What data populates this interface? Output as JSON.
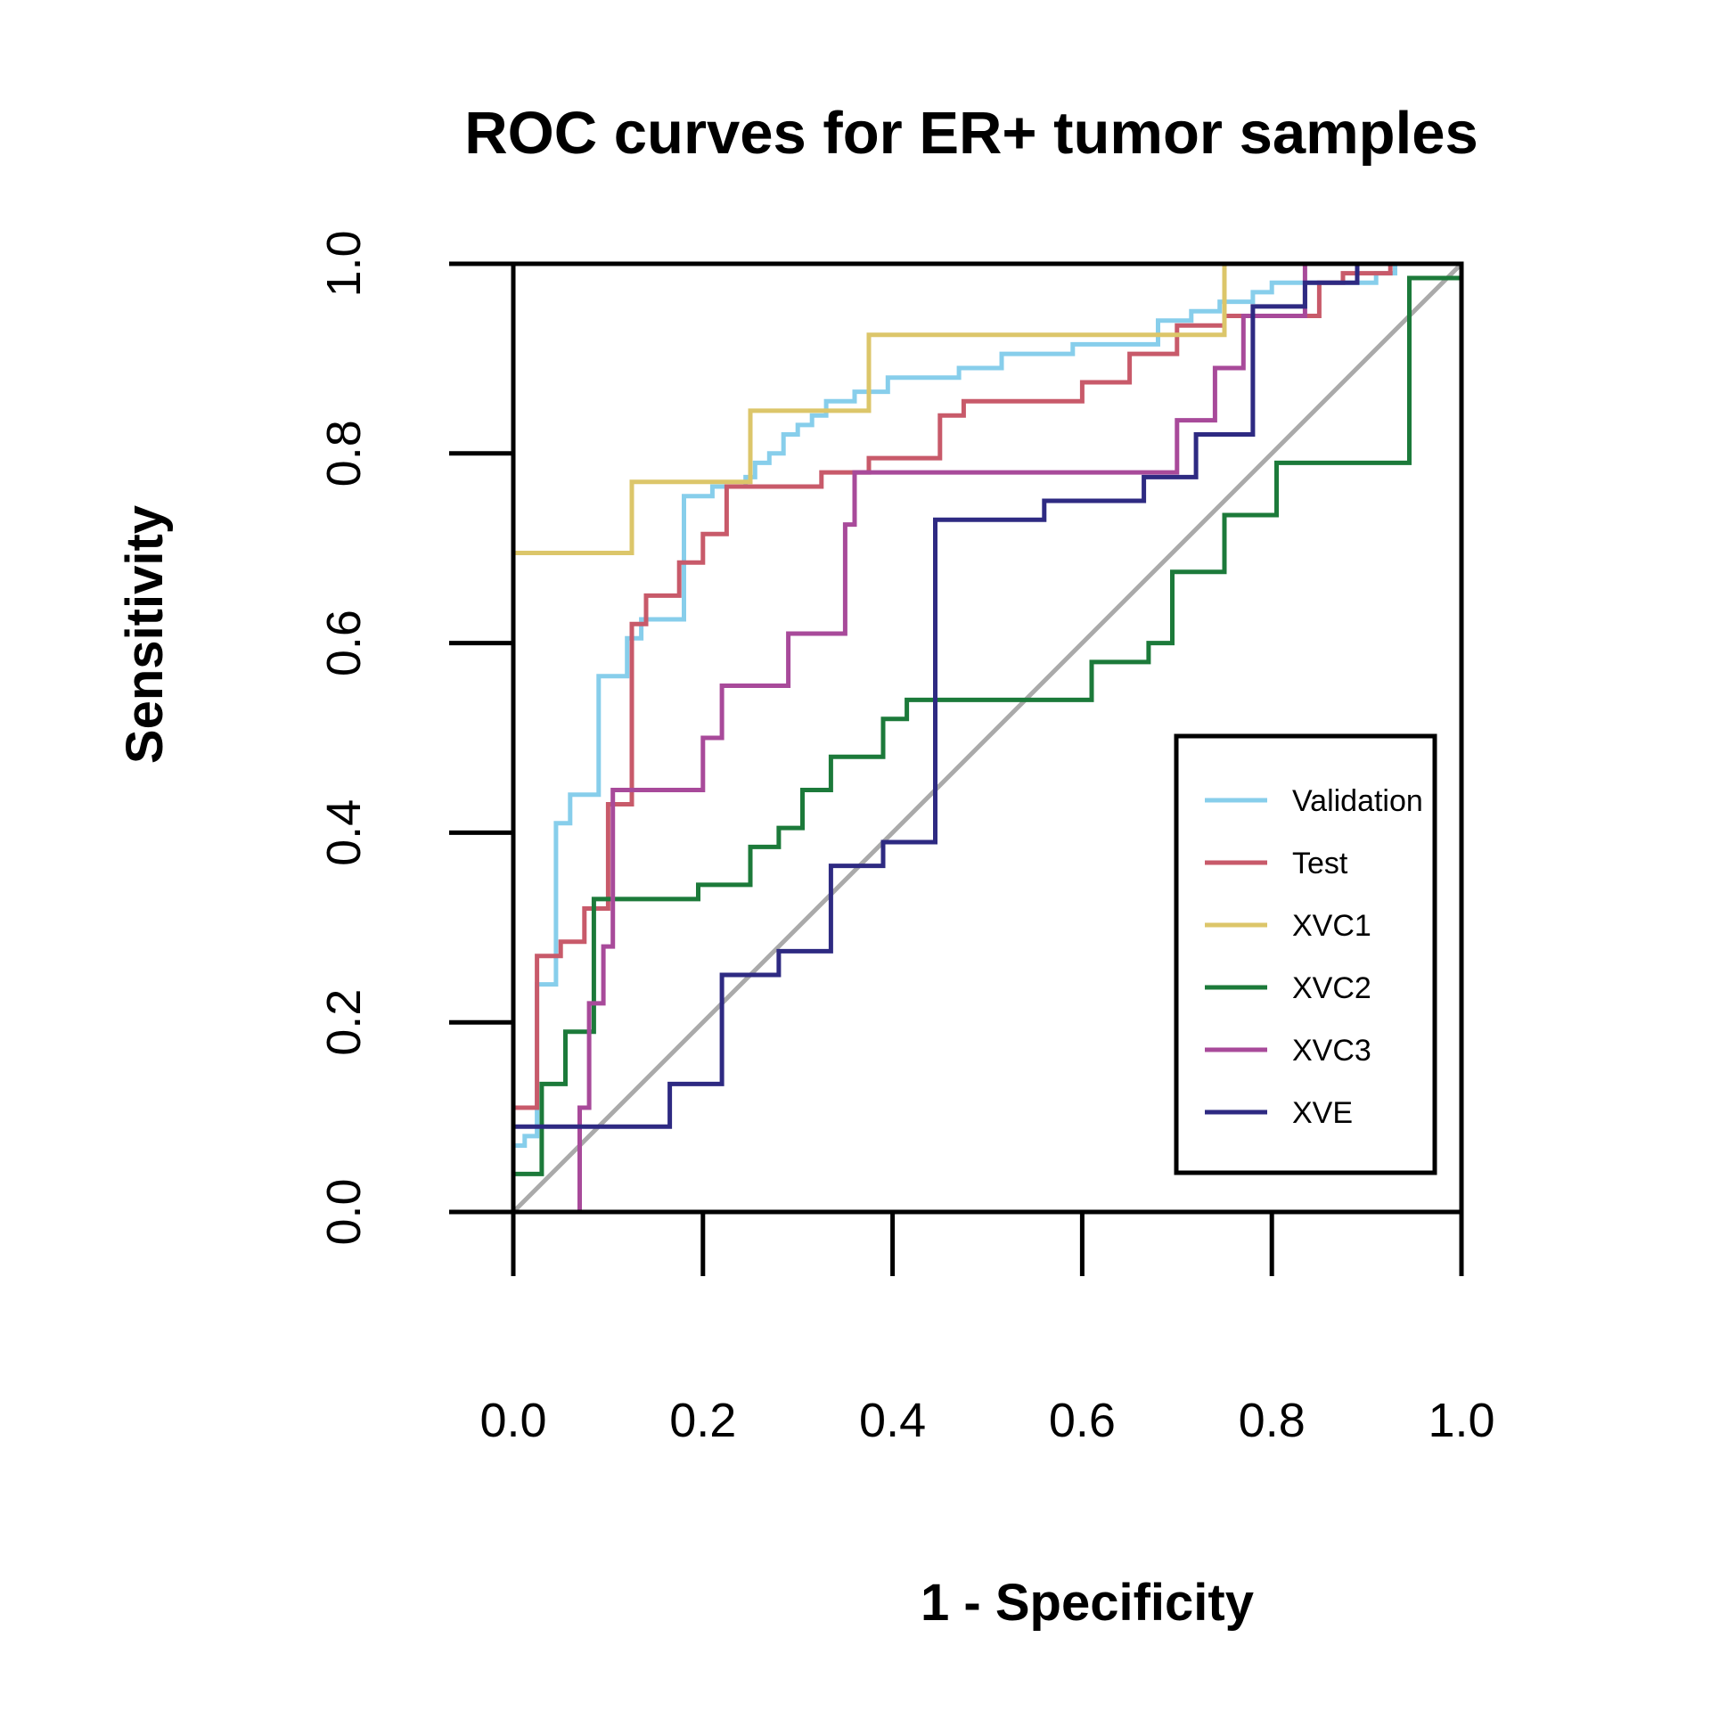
{
  "chart_data": {
    "type": "line",
    "title": "ROC curves for ER+ tumor samples",
    "xlabel": "1 - Specificity",
    "ylabel": "Sensitivity",
    "xlim": [
      0,
      1
    ],
    "ylim": [
      0,
      1
    ],
    "xticks": [
      "0.0",
      "0.2",
      "0.4",
      "0.6",
      "0.8",
      "1.0"
    ],
    "yticks": [
      "0.0",
      "0.2",
      "0.4",
      "0.6",
      "0.8",
      "1.0"
    ],
    "grid": false,
    "legend_position": "bottom-right",
    "reference_line": {
      "from": [
        0,
        0
      ],
      "to": [
        1,
        1
      ],
      "color": "#aaaaaa"
    },
    "series": [
      {
        "name": "Validation",
        "color": "#87ceeb",
        "points": [
          [
            0,
            0
          ],
          [
            0,
            0.07
          ],
          [
            0.012,
            0.07
          ],
          [
            0.012,
            0.08
          ],
          [
            0.025,
            0.08
          ],
          [
            0.025,
            0.24
          ],
          [
            0.045,
            0.24
          ],
          [
            0.045,
            0.41
          ],
          [
            0.06,
            0.41
          ],
          [
            0.06,
            0.44
          ],
          [
            0.09,
            0.44
          ],
          [
            0.09,
            0.565
          ],
          [
            0.12,
            0.565
          ],
          [
            0.12,
            0.605
          ],
          [
            0.135,
            0.605
          ],
          [
            0.135,
            0.625
          ],
          [
            0.18,
            0.625
          ],
          [
            0.18,
            0.755
          ],
          [
            0.21,
            0.755
          ],
          [
            0.21,
            0.765
          ],
          [
            0.245,
            0.765
          ],
          [
            0.245,
            0.775
          ],
          [
            0.255,
            0.775
          ],
          [
            0.255,
            0.79
          ],
          [
            0.27,
            0.79
          ],
          [
            0.27,
            0.8
          ],
          [
            0.285,
            0.8
          ],
          [
            0.285,
            0.82
          ],
          [
            0.3,
            0.82
          ],
          [
            0.3,
            0.83
          ],
          [
            0.315,
            0.83
          ],
          [
            0.315,
            0.84
          ],
          [
            0.33,
            0.84
          ],
          [
            0.33,
            0.855
          ],
          [
            0.36,
            0.855
          ],
          [
            0.36,
            0.865
          ],
          [
            0.395,
            0.865
          ],
          [
            0.395,
            0.88
          ],
          [
            0.47,
            0.88
          ],
          [
            0.47,
            0.89
          ],
          [
            0.515,
            0.89
          ],
          [
            0.515,
            0.905
          ],
          [
            0.59,
            0.905
          ],
          [
            0.59,
            0.915
          ],
          [
            0.68,
            0.915
          ],
          [
            0.68,
            0.94
          ],
          [
            0.715,
            0.94
          ],
          [
            0.715,
            0.95
          ],
          [
            0.745,
            0.95
          ],
          [
            0.745,
            0.96
          ],
          [
            0.78,
            0.96
          ],
          [
            0.78,
            0.97
          ],
          [
            0.8,
            0.97
          ],
          [
            0.8,
            0.98
          ],
          [
            0.91,
            0.98
          ],
          [
            0.91,
            0.99
          ],
          [
            0.93,
            0.99
          ],
          [
            0.93,
            1
          ],
          [
            1,
            1
          ]
        ]
      },
      {
        "name": "Test",
        "color": "#c85a6a",
        "points": [
          [
            0,
            0
          ],
          [
            0,
            0.11
          ],
          [
            0.025,
            0.11
          ],
          [
            0.025,
            0.27
          ],
          [
            0.05,
            0.27
          ],
          [
            0.05,
            0.285
          ],
          [
            0.075,
            0.285
          ],
          [
            0.075,
            0.32
          ],
          [
            0.1,
            0.32
          ],
          [
            0.1,
            0.43
          ],
          [
            0.125,
            0.43
          ],
          [
            0.125,
            0.62
          ],
          [
            0.14,
            0.62
          ],
          [
            0.14,
            0.65
          ],
          [
            0.175,
            0.65
          ],
          [
            0.175,
            0.685
          ],
          [
            0.2,
            0.685
          ],
          [
            0.2,
            0.715
          ],
          [
            0.225,
            0.715
          ],
          [
            0.225,
            0.765
          ],
          [
            0.325,
            0.765
          ],
          [
            0.325,
            0.78
          ],
          [
            0.375,
            0.78
          ],
          [
            0.375,
            0.795
          ],
          [
            0.45,
            0.795
          ],
          [
            0.45,
            0.84
          ],
          [
            0.475,
            0.84
          ],
          [
            0.475,
            0.855
          ],
          [
            0.6,
            0.855
          ],
          [
            0.6,
            0.875
          ],
          [
            0.65,
            0.875
          ],
          [
            0.65,
            0.905
          ],
          [
            0.7,
            0.905
          ],
          [
            0.7,
            0.935
          ],
          [
            0.75,
            0.935
          ],
          [
            0.75,
            0.945
          ],
          [
            0.85,
            0.945
          ],
          [
            0.85,
            0.98
          ],
          [
            0.875,
            0.98
          ],
          [
            0.875,
            0.99
          ],
          [
            0.925,
            0.99
          ],
          [
            0.925,
            1
          ],
          [
            1,
            1
          ]
        ]
      },
      {
        "name": "XVC1",
        "color": "#dcc66a",
        "points": [
          [
            0,
            0
          ],
          [
            0,
            0.695
          ],
          [
            0.125,
            0.695
          ],
          [
            0.125,
            0.77
          ],
          [
            0.25,
            0.77
          ],
          [
            0.25,
            0.845
          ],
          [
            0.375,
            0.845
          ],
          [
            0.375,
            0.925
          ],
          [
            0.75,
            0.925
          ],
          [
            0.75,
            1
          ],
          [
            1,
            1
          ]
        ]
      },
      {
        "name": "XVC2",
        "color": "#1c7a3a",
        "points": [
          [
            0,
            0
          ],
          [
            0,
            0.04
          ],
          [
            0.03,
            0.04
          ],
          [
            0.03,
            0.135
          ],
          [
            0.055,
            0.135
          ],
          [
            0.055,
            0.19
          ],
          [
            0.085,
            0.19
          ],
          [
            0.085,
            0.33
          ],
          [
            0.195,
            0.33
          ],
          [
            0.195,
            0.345
          ],
          [
            0.25,
            0.345
          ],
          [
            0.25,
            0.385
          ],
          [
            0.28,
            0.385
          ],
          [
            0.28,
            0.405
          ],
          [
            0.305,
            0.405
          ],
          [
            0.305,
            0.445
          ],
          [
            0.335,
            0.445
          ],
          [
            0.335,
            0.48
          ],
          [
            0.39,
            0.48
          ],
          [
            0.39,
            0.52
          ],
          [
            0.415,
            0.52
          ],
          [
            0.415,
            0.54
          ],
          [
            0.61,
            0.54
          ],
          [
            0.61,
            0.58
          ],
          [
            0.67,
            0.58
          ],
          [
            0.67,
            0.6
          ],
          [
            0.695,
            0.6
          ],
          [
            0.695,
            0.675
          ],
          [
            0.75,
            0.675
          ],
          [
            0.75,
            0.735
          ],
          [
            0.805,
            0.735
          ],
          [
            0.805,
            0.79
          ],
          [
            0.945,
            0.79
          ],
          [
            0.945,
            0.985
          ],
          [
            1,
            0.985
          ],
          [
            1,
            1
          ]
        ]
      },
      {
        "name": "XVC3",
        "color": "#a84a9a",
        "points": [
          [
            0,
            0
          ],
          [
            0.07,
            0
          ],
          [
            0.07,
            0.11
          ],
          [
            0.08,
            0.11
          ],
          [
            0.08,
            0.22
          ],
          [
            0.095,
            0.22
          ],
          [
            0.095,
            0.28
          ],
          [
            0.105,
            0.28
          ],
          [
            0.105,
            0.445
          ],
          [
            0.2,
            0.445
          ],
          [
            0.2,
            0.5
          ],
          [
            0.22,
            0.5
          ],
          [
            0.22,
            0.555
          ],
          [
            0.29,
            0.555
          ],
          [
            0.29,
            0.61
          ],
          [
            0.35,
            0.61
          ],
          [
            0.35,
            0.725
          ],
          [
            0.36,
            0.725
          ],
          [
            0.36,
            0.78
          ],
          [
            0.7,
            0.78
          ],
          [
            0.7,
            0.835
          ],
          [
            0.74,
            0.835
          ],
          [
            0.74,
            0.89
          ],
          [
            0.77,
            0.89
          ],
          [
            0.77,
            0.945
          ],
          [
            0.835,
            0.945
          ],
          [
            0.835,
            1
          ],
          [
            1,
            1
          ]
        ]
      },
      {
        "name": "XVE",
        "color": "#2e2a82",
        "points": [
          [
            0,
            0
          ],
          [
            0,
            0.09
          ],
          [
            0.165,
            0.09
          ],
          [
            0.165,
            0.135
          ],
          [
            0.22,
            0.135
          ],
          [
            0.22,
            0.25
          ],
          [
            0.28,
            0.25
          ],
          [
            0.28,
            0.275
          ],
          [
            0.335,
            0.275
          ],
          [
            0.335,
            0.365
          ],
          [
            0.39,
            0.365
          ],
          [
            0.39,
            0.39
          ],
          [
            0.445,
            0.39
          ],
          [
            0.445,
            0.73
          ],
          [
            0.56,
            0.73
          ],
          [
            0.56,
            0.75
          ],
          [
            0.665,
            0.75
          ],
          [
            0.665,
            0.775
          ],
          [
            0.72,
            0.775
          ],
          [
            0.72,
            0.82
          ],
          [
            0.78,
            0.82
          ],
          [
            0.78,
            0.955
          ],
          [
            0.835,
            0.955
          ],
          [
            0.835,
            0.98
          ],
          [
            0.89,
            0.98
          ],
          [
            0.89,
            1
          ],
          [
            1,
            1
          ]
        ]
      }
    ]
  }
}
